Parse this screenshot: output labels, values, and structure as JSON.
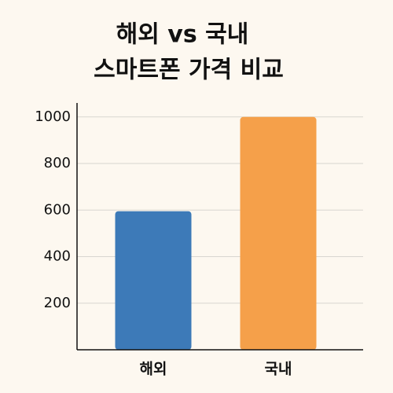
{
  "chart_data": {
    "type": "bar",
    "title": [
      "해외 vs 국내",
      "스마트폰 가격 비교"
    ],
    "categories": [
      "해외",
      "국내"
    ],
    "values": [
      595,
      1000
    ],
    "colors": [
      "#3d7ab8",
      "#f5a04a"
    ],
    "ylim": [
      0,
      1060
    ],
    "yticks": [
      200,
      400,
      600,
      800,
      1000
    ],
    "grid": true
  }
}
